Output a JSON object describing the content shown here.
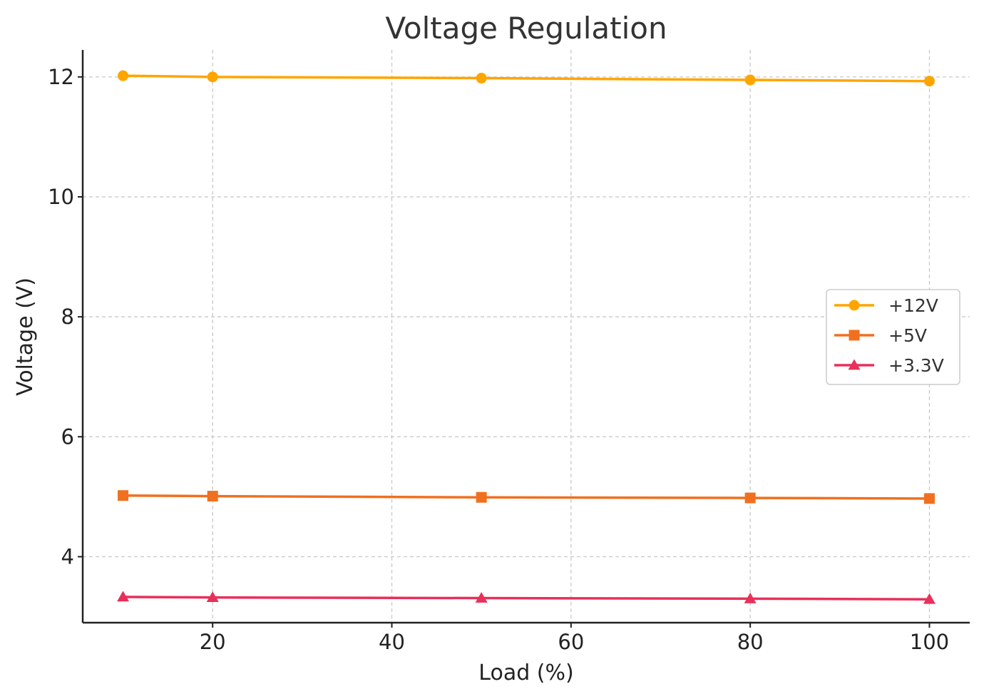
{
  "chart_data": {
    "type": "line",
    "title": "Voltage Regulation",
    "xlabel": "Load (%)",
    "ylabel": "Voltage (V)",
    "x": [
      10,
      20,
      50,
      80,
      100
    ],
    "xlim": [
      5.5,
      104.5
    ],
    "ylim": [
      2.9,
      12.45
    ],
    "xticks": [
      20,
      40,
      60,
      80,
      100
    ],
    "yticks": [
      4,
      6,
      8,
      10,
      12
    ],
    "xtick_labels": [
      "20",
      "40",
      "60",
      "80",
      "100"
    ],
    "ytick_labels": [
      "4",
      "6",
      "8",
      "10",
      "12"
    ],
    "grid": true,
    "legend_position": "center-right",
    "series": [
      {
        "name": "+12V",
        "color": "#FFA500",
        "marker": "circle",
        "values": [
          12.02,
          12.0,
          11.98,
          11.95,
          11.93
        ]
      },
      {
        "name": "+5V",
        "color": "#F07020",
        "marker": "square",
        "values": [
          5.02,
          5.01,
          4.99,
          4.98,
          4.97
        ]
      },
      {
        "name": "+3.3V",
        "color": "#E8305A",
        "marker": "triangle",
        "values": [
          3.33,
          3.32,
          3.31,
          3.3,
          3.29
        ]
      }
    ]
  }
}
